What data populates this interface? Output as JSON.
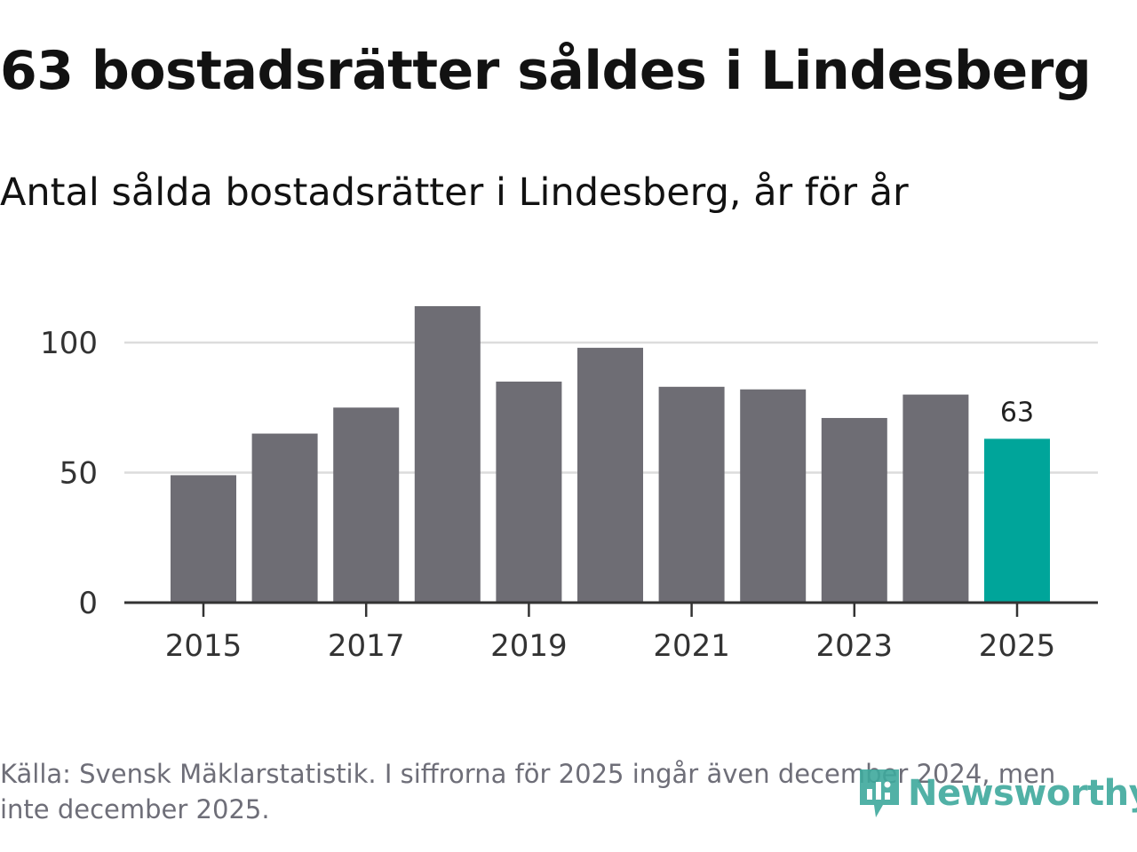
{
  "title": "63 bostadsrätter såldes i Lindesberg",
  "subtitle": "Antal sålda bostadsrätter i Lindesberg, år för år",
  "source": "Källa: Svensk Mäklarstatistik. I siffrorna för 2025 ingår även december 2024, men inte december 2025.",
  "logo": {
    "text": "Newsworthy",
    "icon": "newsworthy-logo-icon"
  },
  "colors": {
    "bar": "#6e6d74",
    "highlight": "#00a59a",
    "grid": "#dcdcdc",
    "axis": "#333333",
    "logo": "#3fa99d"
  },
  "chart_data": {
    "type": "bar",
    "title": "Antal sålda bostadsrätter i Lindesberg, år för år",
    "xlabel": "",
    "ylabel": "",
    "categories": [
      "2015",
      "2016",
      "2017",
      "2018",
      "2019",
      "2020",
      "2021",
      "2022",
      "2023",
      "2024",
      "2025"
    ],
    "values": [
      49,
      65,
      75,
      114,
      85,
      98,
      83,
      82,
      71,
      80,
      63
    ],
    "highlight_index": 10,
    "data_labels": [
      {
        "index": 10,
        "text": "63"
      }
    ],
    "x_tick_labels": [
      "2015",
      "2017",
      "2019",
      "2021",
      "2023",
      "2025"
    ],
    "y_ticks": [
      0,
      50,
      100
    ],
    "ylim": [
      0,
      120
    ],
    "grid": true
  }
}
